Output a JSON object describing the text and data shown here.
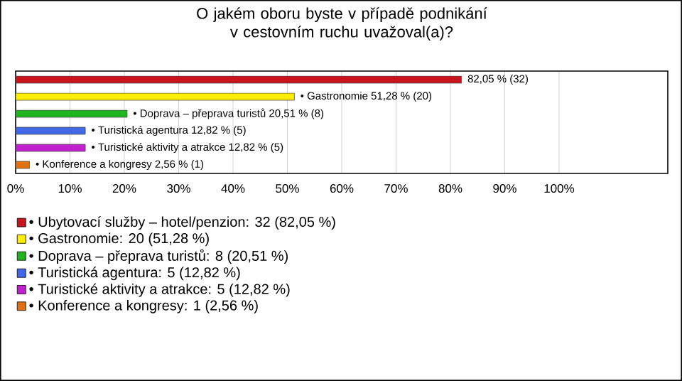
{
  "chart_data": {
    "type": "bar",
    "orientation": "horizontal",
    "stacked": true,
    "title": "O jakém oboru byste v případě podnikání v cestovním ruchu uvažoval(a)?",
    "categories": [
      null,
      null,
      null,
      null,
      null,
      null
    ],
    "series": [
      {
        "name": "• Ubytovací služby – hotel/penzion: 32 (82,05 %)",
        "color": "#c8141c",
        "values": [
          82.05,
          null,
          null,
          null,
          null,
          null
        ],
        "value_labels": [
          "82,05 % (32)",
          null,
          null,
          null,
          null,
          null
        ]
      },
      {
        "name": "• Gastronomie: 20 (51,28 %)",
        "color": "#ffee00",
        "values": [
          null,
          51.28,
          null,
          null,
          null,
          null
        ],
        "value_labels": [
          null,
          "• Gastronomie 51,28 % (20)",
          null,
          null,
          null,
          null
        ]
      },
      {
        "name": "• Doprava – přeprava turistů: 8 (20,51 %)",
        "color": "#20b420",
        "values": [
          null,
          null,
          20.51,
          null,
          null,
          null
        ],
        "value_labels": [
          null,
          null,
          "• Doprava – přeprava turistů 20,51 % (8)",
          null,
          null,
          null
        ]
      },
      {
        "name": "• Turistická agentura: 5 (12,82 %)",
        "color": "#4068e8",
        "values": [
          null,
          null,
          null,
          12.82,
          null,
          null
        ],
        "value_labels": [
          null,
          null,
          null,
          "• Turistická agentura 12,82 % (5)",
          null,
          null
        ]
      },
      {
        "name": "• Turistické aktivity a atrakce: 5 (12,82 %)",
        "color": "#c020d0",
        "values": [
          null,
          null,
          null,
          null,
          12.82,
          null
        ],
        "value_labels": [
          null,
          null,
          null,
          null,
          "• Turistické aktivity a atrakce 12,82 % (5)",
          null
        ]
      },
      {
        "name": "• Konference a kongresy: 1 (2,56 %)",
        "color": "#e07010",
        "values": [
          null,
          null,
          null,
          null,
          null,
          2.56
        ],
        "value_labels": [
          null,
          null,
          null,
          null,
          null,
          "• Konference a kongresy 2,56 % (1)"
        ]
      }
    ],
    "xlim": [
      0,
      120
    ],
    "xticks": [
      {
        "value": 0,
        "label": "0%"
      },
      {
        "value": 10,
        "label": "10%"
      },
      {
        "value": 20,
        "label": "20%"
      },
      {
        "value": 30,
        "label": "30%"
      },
      {
        "value": 40,
        "label": "40%"
      },
      {
        "value": 50,
        "label": "50%"
      },
      {
        "value": 60,
        "label": "60%"
      },
      {
        "value": 70,
        "label": "70%"
      },
      {
        "value": 80,
        "label": "80%"
      },
      {
        "value": 90,
        "label": "90%"
      },
      {
        "value": 100,
        "label": "100%"
      }
    ],
    "grid": "x",
    "legend": "bottom"
  }
}
